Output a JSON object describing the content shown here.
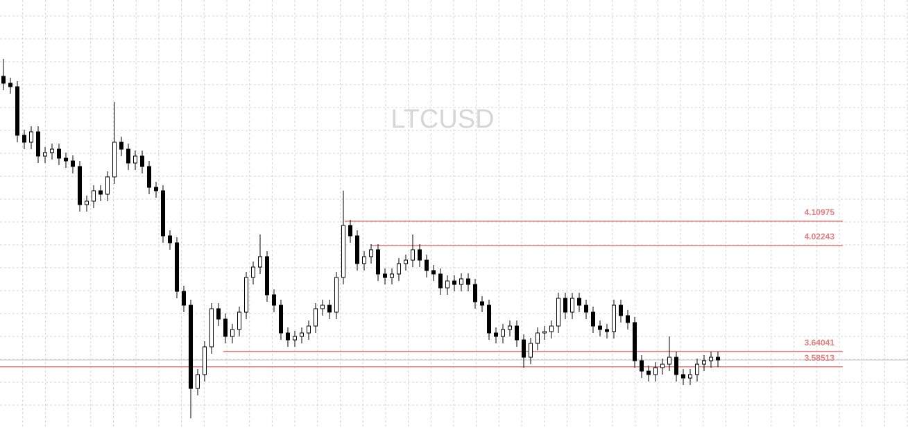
{
  "chart_data": {
    "type": "candlestick",
    "title": "LTCUSD",
    "ylim": [
      3.3645,
      4.907
    ],
    "candle_color": "#000000",
    "level_color": "#e57d7d",
    "levels": [
      4.10975,
      4.02243,
      3.64041,
      3.58513
    ],
    "open": [
      4.632,
      4.607,
      4.5945,
      4.4195,
      4.3945,
      4.432,
      4.3445,
      4.357,
      4.3695,
      4.337,
      4.327,
      4.307,
      4.1695,
      4.182,
      4.2195,
      4.207,
      4.2695,
      4.3945,
      4.3695,
      4.3195,
      4.3445,
      4.307,
      4.232,
      4.2195,
      4.057,
      4.032,
      3.857,
      3.807,
      3.507,
      3.557,
      3.657,
      3.7945,
      3.757,
      3.6945,
      3.7195,
      3.782,
      3.907,
      3.9445,
      3.982,
      3.8445,
      3.807,
      3.707,
      3.682,
      3.6945,
      3.707,
      3.732,
      3.7945,
      3.807,
      3.782,
      3.907,
      4.0945,
      4.057,
      3.957,
      3.982,
      4.007,
      3.9195,
      3.907,
      3.9195,
      3.957,
      3.9695,
      4.007,
      3.9695,
      3.932,
      3.9195,
      3.8695,
      3.8945,
      3.882,
      3.902,
      3.882,
      3.8195,
      3.807,
      3.707,
      3.6945,
      3.7195,
      3.732,
      3.682,
      3.6195,
      3.6695,
      3.707,
      3.712,
      3.732,
      3.832,
      3.782,
      3.832,
      3.807,
      3.782,
      3.732,
      3.7195,
      3.712,
      3.807,
      3.7695,
      3.7445,
      3.607,
      3.5695,
      3.557,
      3.582,
      3.5945,
      3.6195,
      3.557,
      3.5445,
      3.557,
      3.5945,
      3.607,
      3.6195
    ],
    "high": [
      4.6945,
      4.627,
      4.6145,
      4.4395,
      4.452,
      4.452,
      4.377,
      4.3895,
      4.3895,
      4.357,
      4.347,
      4.327,
      4.202,
      4.2395,
      4.2395,
      4.2895,
      4.5395,
      4.4145,
      4.3895,
      4.3645,
      4.3645,
      4.327,
      4.252,
      4.2395,
      4.077,
      4.052,
      3.877,
      3.827,
      3.577,
      3.677,
      3.8145,
      3.8145,
      3.777,
      3.7395,
      3.802,
      3.927,
      3.9645,
      4.062,
      4.002,
      3.8645,
      3.827,
      3.727,
      3.7145,
      3.727,
      3.752,
      3.8145,
      3.827,
      3.827,
      3.927,
      4.2195,
      4.1145,
      4.077,
      4.002,
      4.027,
      4.027,
      3.9395,
      3.9395,
      3.977,
      3.9895,
      4.062,
      4.027,
      3.9895,
      3.952,
      3.9395,
      3.9145,
      3.9145,
      3.922,
      3.922,
      3.902,
      3.8395,
      3.827,
      3.727,
      3.7395,
      3.752,
      3.752,
      3.702,
      3.6895,
      3.727,
      3.732,
      3.752,
      3.852,
      3.852,
      3.852,
      3.852,
      3.827,
      3.802,
      3.752,
      3.7395,
      3.827,
      3.827,
      3.7895,
      3.7645,
      3.627,
      3.5895,
      3.602,
      3.6145,
      3.6945,
      3.6395,
      3.577,
      3.577,
      3.6145,
      3.627,
      3.6395,
      3.6395
    ],
    "low": [
      4.582,
      4.5695,
      4.3945,
      4.3695,
      4.3695,
      4.3195,
      4.3195,
      4.332,
      4.312,
      4.302,
      4.282,
      4.1445,
      4.1445,
      4.157,
      4.182,
      4.182,
      4.2445,
      4.3445,
      4.2945,
      4.2945,
      4.282,
      4.207,
      4.1945,
      4.032,
      4.007,
      3.832,
      3.782,
      3.3995,
      3.482,
      3.532,
      3.632,
      3.732,
      3.6695,
      3.6695,
      3.6945,
      3.757,
      3.882,
      3.9195,
      3.8195,
      3.782,
      3.682,
      3.657,
      3.657,
      3.6695,
      3.682,
      3.707,
      3.7695,
      3.757,
      3.757,
      3.882,
      4.032,
      3.932,
      3.932,
      3.957,
      3.8945,
      3.882,
      3.882,
      3.8945,
      3.932,
      3.9445,
      3.9445,
      3.907,
      3.8945,
      3.8445,
      3.8445,
      3.857,
      3.857,
      3.857,
      3.7945,
      3.782,
      3.682,
      3.6695,
      3.6695,
      3.6945,
      3.657,
      3.582,
      3.5945,
      3.6445,
      3.682,
      3.687,
      3.707,
      3.757,
      3.757,
      3.782,
      3.757,
      3.707,
      3.6945,
      3.687,
      3.687,
      3.7445,
      3.7195,
      3.582,
      3.5445,
      3.532,
      3.532,
      3.557,
      3.5695,
      3.532,
      3.5195,
      3.5195,
      3.532,
      3.5695,
      3.582,
      3.5845
    ],
    "close": [
      4.607,
      4.5945,
      4.4195,
      4.3945,
      4.432,
      4.3445,
      4.357,
      4.3695,
      4.337,
      4.327,
      4.307,
      4.1695,
      4.182,
      4.2195,
      4.207,
      4.2695,
      4.3945,
      4.3695,
      4.3195,
      4.3445,
      4.307,
      4.232,
      4.2195,
      4.057,
      4.032,
      3.857,
      3.807,
      3.507,
      3.557,
      3.657,
      3.7945,
      3.757,
      3.6945,
      3.7195,
      3.782,
      3.907,
      3.9445,
      3.982,
      3.8445,
      3.807,
      3.707,
      3.682,
      3.6945,
      3.707,
      3.732,
      3.7945,
      3.807,
      3.782,
      3.907,
      4.0945,
      4.057,
      3.957,
      3.982,
      4.007,
      3.9195,
      3.907,
      3.9195,
      3.957,
      3.9695,
      4.007,
      3.9695,
      3.932,
      3.9195,
      3.8695,
      3.8945,
      3.882,
      3.902,
      3.882,
      3.8195,
      3.807,
      3.707,
      3.6945,
      3.7195,
      3.732,
      3.682,
      3.6195,
      3.6695,
      3.707,
      3.712,
      3.732,
      3.832,
      3.782,
      3.832,
      3.807,
      3.782,
      3.732,
      3.7195,
      3.712,
      3.807,
      3.7695,
      3.7445,
      3.607,
      3.5695,
      3.557,
      3.582,
      3.5945,
      3.6195,
      3.557,
      3.5445,
      3.557,
      3.5945,
      3.607,
      3.6195,
      3.6095
    ]
  }
}
